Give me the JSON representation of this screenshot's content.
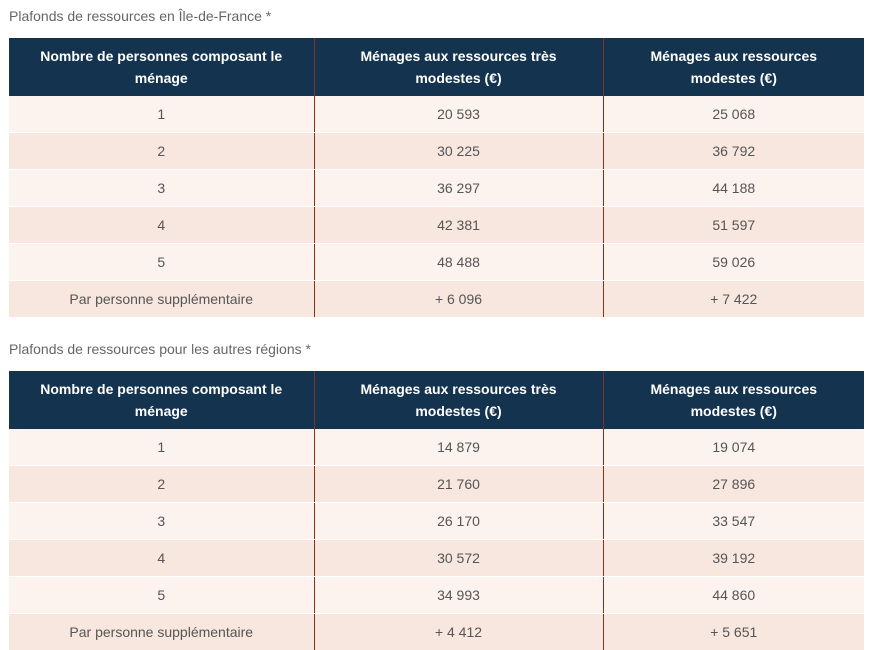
{
  "table_idf": {
    "caption": "Plafonds de ressources en Île-de-France *",
    "headers": [
      "Nombre de personnes composant le ménage",
      "Ménages aux ressources très modestes (€)",
      "Ménages aux ressources modestes (€)"
    ],
    "rows": [
      [
        "1",
        "20 593",
        "25 068"
      ],
      [
        "2",
        "30 225",
        "36 792"
      ],
      [
        "3",
        "36 297",
        "44 188"
      ],
      [
        "4",
        "42 381",
        "51 597"
      ],
      [
        "5",
        "48 488",
        "59 026"
      ],
      [
        "Par personne supplémentaire",
        "+ 6 096",
        "+ 7 422"
      ]
    ]
  },
  "table_regions": {
    "caption": "Plafonds de ressources pour les autres régions *",
    "headers": [
      "Nombre de personnes composant le ménage",
      "Ménages aux ressources très modestes (€)",
      "Ménages aux ressources modestes (€)"
    ],
    "rows": [
      [
        "1",
        "14 879",
        "19 074"
      ],
      [
        "2",
        "21 760",
        "27 896"
      ],
      [
        "3",
        "26 170",
        "33 547"
      ],
      [
        "4",
        "30 572",
        "39 192"
      ],
      [
        "5",
        "34 993",
        "44 860"
      ],
      [
        "Par personne supplémentaire",
        "+ 4 412",
        "+ 5 651"
      ]
    ]
  }
}
